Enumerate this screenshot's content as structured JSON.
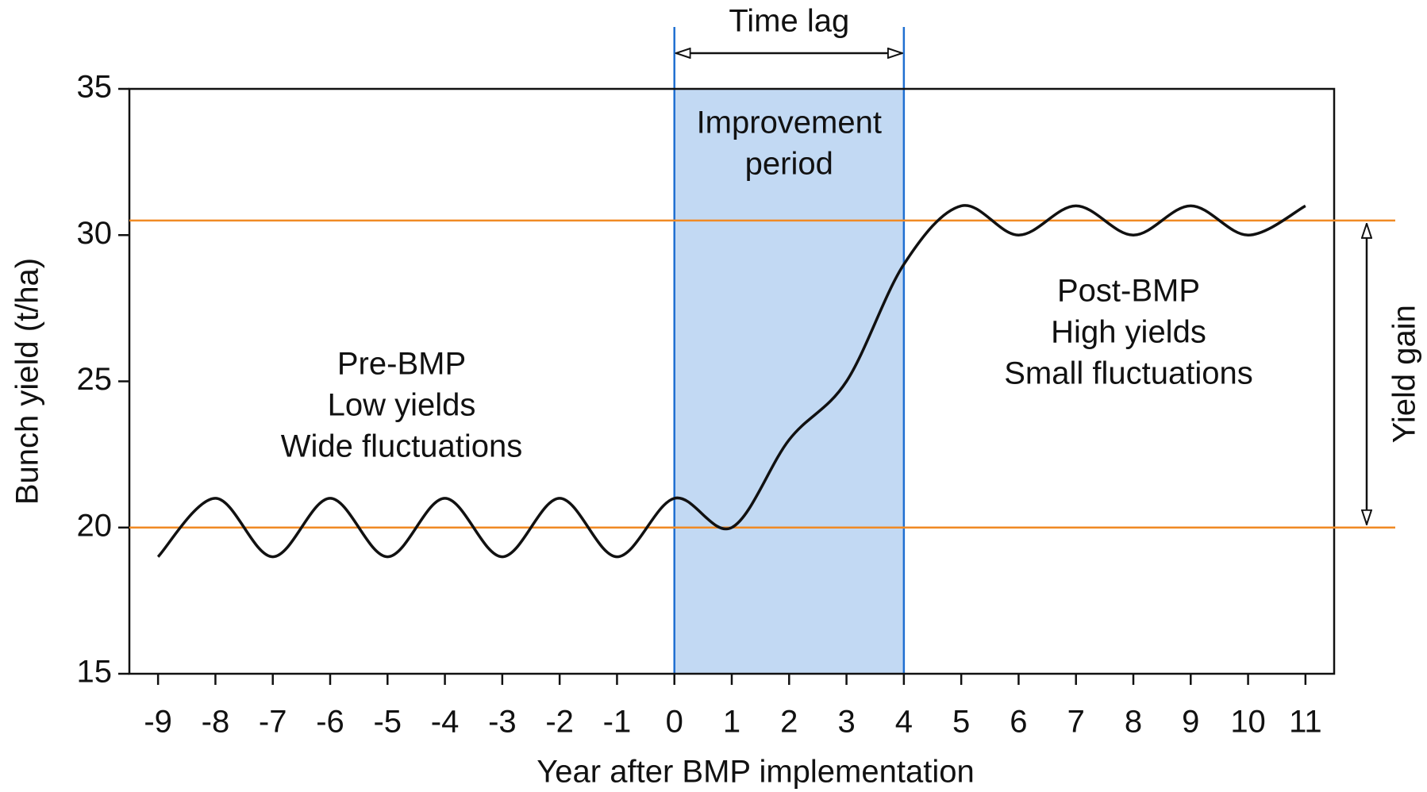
{
  "chart_data": {
    "type": "line",
    "x_label": "Year after BMP implementation",
    "y_label": "Bunch yield (t/ha)",
    "x": [
      -9,
      -8,
      -7,
      -6,
      -5,
      -4,
      -3,
      -2,
      -1,
      0,
      1,
      2,
      3,
      4,
      5,
      6,
      7,
      8,
      9,
      10,
      11
    ],
    "series": [
      {
        "color": "#111111",
        "values": [
          19,
          21,
          19,
          21,
          19,
          21,
          19,
          21,
          19,
          21,
          20,
          23,
          25,
          29,
          31,
          30,
          31,
          30,
          31,
          30,
          31
        ]
      }
    ],
    "xlim": [
      -9.5,
      11.5
    ],
    "xticks": [
      -9,
      -8,
      -7,
      -6,
      -5,
      -4,
      -3,
      -2,
      -1,
      0,
      1,
      2,
      3,
      4,
      5,
      6,
      7,
      8,
      9,
      10,
      11
    ],
    "ylim": [
      15,
      35
    ],
    "yticks": [
      15,
      20,
      25,
      30,
      35
    ],
    "reference_lines": [
      {
        "value": 20,
        "color": "#f08a24"
      },
      {
        "value": 30.5,
        "color": "#f08a24"
      }
    ],
    "shaded_span": {
      "from": 0,
      "to": 4,
      "color": "#c2d9f3",
      "edge_color": "#1f6fd1"
    },
    "annotations": {
      "time_lag": "Time lag",
      "improvement": [
        "Improvement",
        "period"
      ],
      "pre": [
        "Pre-BMP",
        "Low yields",
        "Wide fluctuations"
      ],
      "post": [
        "Post-BMP",
        "High yields",
        "Small fluctuations"
      ],
      "yield_gain": "Yield gain"
    }
  }
}
